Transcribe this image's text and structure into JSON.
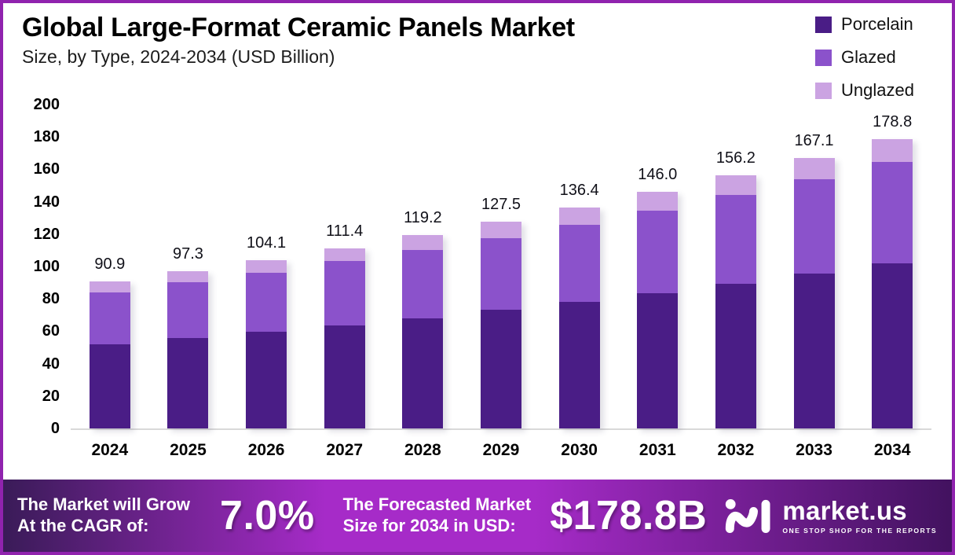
{
  "page": {
    "border_color": "#9023AE",
    "background": "#FFFFFF"
  },
  "chart_data": {
    "type": "bar",
    "stacked": true,
    "title": "Global Large-Format Ceramic Panels Market",
    "subtitle": "Size, by Type, 2024-2034 (USD Billion)",
    "unit": "USD Billion",
    "categories": [
      "2024",
      "2025",
      "2026",
      "2027",
      "2028",
      "2029",
      "2030",
      "2031",
      "2032",
      "2033",
      "2034"
    ],
    "series": [
      {
        "name": "Porcelain",
        "color": "#4A1D86",
        "values": [
          51.8,
          55.8,
          59.7,
          63.4,
          68.0,
          73.2,
          78.0,
          83.3,
          89.3,
          95.5,
          101.9
        ]
      },
      {
        "name": "Glazed",
        "color": "#8B52CB",
        "values": [
          32.0,
          34.3,
          36.4,
          39.8,
          42.3,
          44.1,
          47.9,
          51.3,
          54.7,
          58.5,
          62.7
        ]
      },
      {
        "name": "Unglazed",
        "color": "#CBA3E2",
        "values": [
          7.1,
          7.2,
          8.0,
          8.2,
          8.9,
          10.2,
          10.5,
          11.4,
          12.2,
          13.1,
          14.2
        ]
      }
    ],
    "totals_labels": [
      "90.9",
      "97.3",
      "104.1",
      "111.4",
      "119.2",
      "127.5",
      "136.4",
      "146.0",
      "156.2",
      "167.1",
      "178.8"
    ],
    "ylim": [
      0,
      200
    ],
    "ytick_step": 20,
    "legend_position": "top-right",
    "grid": false,
    "axis_line_color": "#D9D9D9"
  },
  "footer": {
    "cagr_line1": "The Market will Grow",
    "cagr_line2": "At the CAGR of:",
    "cagr_value": "7.0%",
    "forecast_line1": "The Forecasted Market",
    "forecast_line2": "Size for 2034 in USD:",
    "forecast_value": "$178.8B",
    "brand": "market.us",
    "brand_tagline": "ONE STOP SHOP FOR THE REPORTS",
    "gradient": [
      "#3A1B58",
      "#A62BC8",
      "#A62BC8",
      "#42125F"
    ]
  }
}
